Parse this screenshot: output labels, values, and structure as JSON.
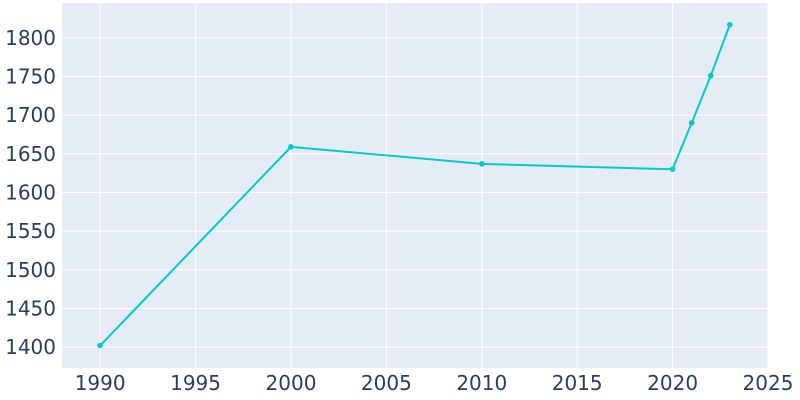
{
  "chart_data": {
    "type": "line",
    "title": "",
    "xlabel": "",
    "ylabel": "",
    "x": [
      1990,
      2000,
      2010,
      2020,
      2021,
      2022,
      2023
    ],
    "series": [
      {
        "values": [
          1402,
          1659,
          1637,
          1630,
          1690,
          1751,
          1817
        ]
      }
    ],
    "xlim": [
      1988,
      2025
    ],
    "ylim": [
      1373,
      1845
    ],
    "xticks": [
      1990,
      1995,
      2000,
      2005,
      2010,
      2015,
      2020,
      2025
    ],
    "yticks": [
      1400,
      1450,
      1500,
      1550,
      1600,
      1650,
      1700,
      1750,
      1800
    ],
    "grid": true,
    "legend": "none",
    "colors": {
      "line": "#00cccc",
      "plot_background": "#e5ecf6",
      "grid": "#ffffff",
      "tick_text": "#2a3f5f"
    }
  }
}
